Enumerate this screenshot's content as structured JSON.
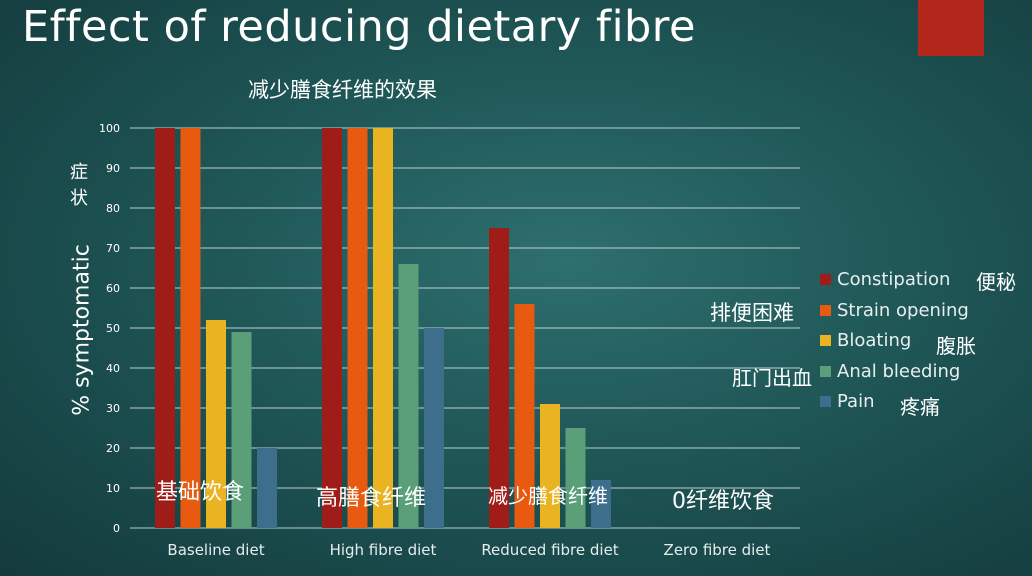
{
  "slide": {
    "title": "Effect of reducing dietary fibre",
    "subtitle_zh": "减少膳食纤维的效果",
    "accent_color": "#b3261b"
  },
  "chart_data": {
    "type": "bar",
    "categories": [
      "Baseline diet",
      "High fibre diet",
      "Reduced fibre diet",
      "Zero fibre diet"
    ],
    "ylabel": "% symptomatic",
    "ylabel_zh": "症状",
    "ylim": [
      0,
      100
    ],
    "yticks": [
      0,
      10,
      20,
      30,
      40,
      50,
      60,
      70,
      80,
      90,
      100
    ],
    "grid": true,
    "legend_position": "right",
    "series": [
      {
        "name": "Constipation",
        "name_zh": "便秘",
        "color": "#a01c18",
        "values": [
          100,
          100,
          75,
          0
        ]
      },
      {
        "name": "Strain opening",
        "name_zh": "排便困难",
        "color": "#e85a10",
        "values": [
          100,
          100,
          56,
          0
        ]
      },
      {
        "name": "Bloating",
        "name_zh": "腹胀",
        "color": "#e9b321",
        "values": [
          52,
          100,
          31,
          0
        ]
      },
      {
        "name": "Anal bleeding",
        "name_zh": "肛门出血",
        "color": "#5a9f77",
        "values": [
          49,
          66,
          25,
          0
        ]
      },
      {
        "name": "Pain",
        "name_zh": "疼痛",
        "color": "#3d6e8c",
        "values": [
          20,
          50,
          12,
          0
        ]
      }
    ],
    "category_labels_zh": [
      "基础饮食",
      "高膳食纤维",
      "减少膳食纤维",
      "0纤维饮食"
    ]
  }
}
